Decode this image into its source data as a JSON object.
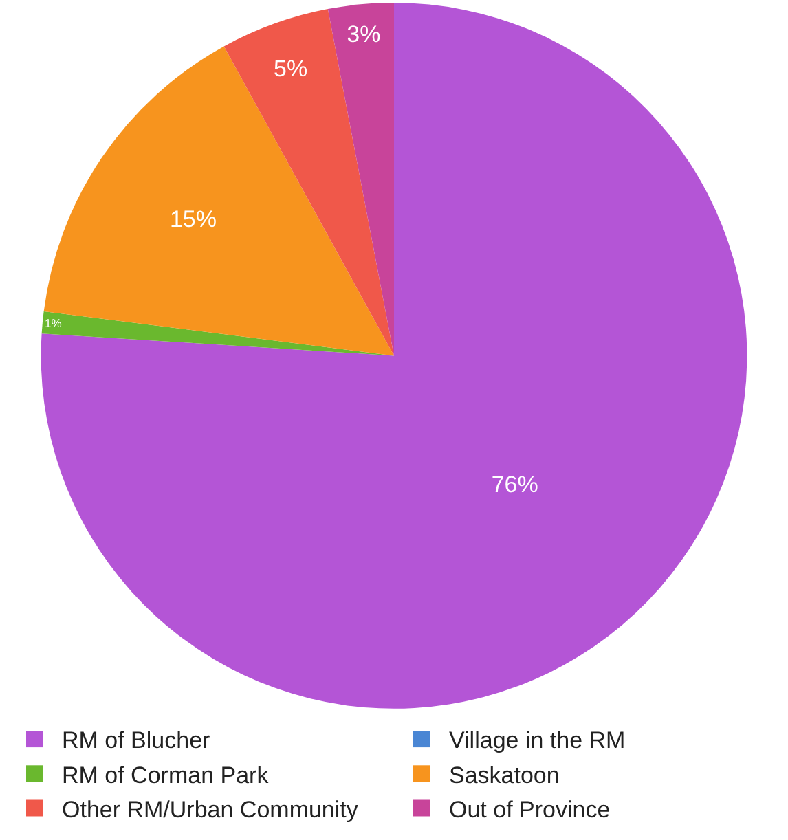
{
  "chart_data": {
    "type": "pie",
    "categories": [
      "RM of Blucher",
      "Village in the RM",
      "RM of Corman Park",
      "Saskatoon",
      "Other RM/Urban Community",
      "Out of Province"
    ],
    "values": [
      76,
      0,
      1,
      15,
      5,
      3
    ],
    "value_labels": [
      "76%",
      null,
      "1%",
      "15%",
      "5%",
      "3%"
    ],
    "colors": [
      "#b455d6",
      "#4a86d4",
      "#6ab82e",
      "#f7941e",
      "#f0584a",
      "#c8449a"
    ],
    "legend": "bottom"
  }
}
